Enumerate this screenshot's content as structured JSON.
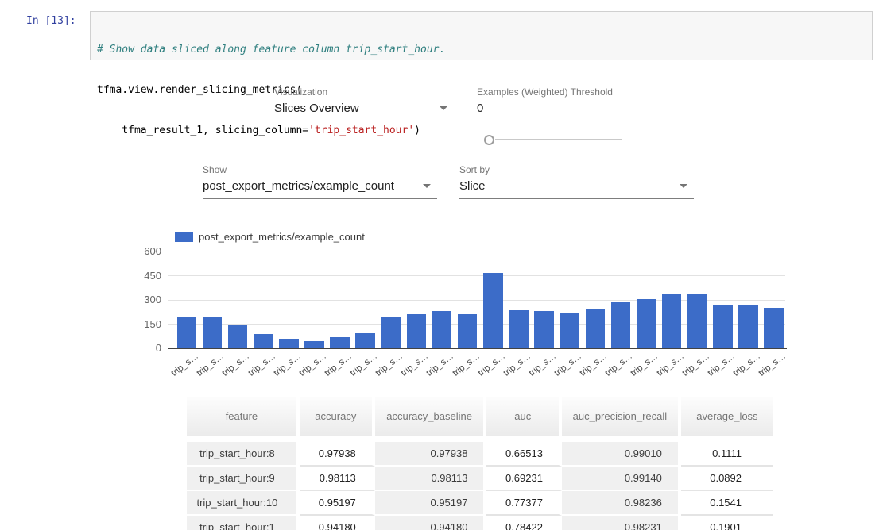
{
  "notebook": {
    "prompt": "In [13]:",
    "code": {
      "comment_line": "# Show data sliced along feature column trip_start_hour.",
      "line2": "tfma.view.render_slicing_metrics(",
      "line3_pre": "    tfma_result_1, slicing_column=",
      "line3_string": "'trip_start_hour'",
      "line3_close": ")"
    }
  },
  "controls": {
    "visualization": {
      "label": "Visualization",
      "value": "Slices Overview"
    },
    "threshold": {
      "label": "Examples (Weighted) Threshold",
      "value": "0",
      "slider_value": 0
    },
    "show": {
      "label": "Show",
      "value": "post_export_metrics/example_count"
    },
    "sort": {
      "label": "Sort by",
      "value": "Slice"
    }
  },
  "chart_data": {
    "type": "bar",
    "legend": "post_export_metrics/example_count",
    "legend_position": "top",
    "grid": true,
    "bar_color": "#3c6cc8",
    "ylim": [
      0,
      600
    ],
    "y_ticks": [
      0,
      150,
      300,
      450,
      600
    ],
    "x_tick_label": "trip_s…",
    "categories": [
      "trip_s…",
      "trip_s…",
      "trip_s…",
      "trip_s…",
      "trip_s…",
      "trip_s…",
      "trip_s…",
      "trip_s…",
      "trip_s…",
      "trip_s…",
      "trip_s…",
      "trip_s…",
      "trip_s…",
      "trip_s…",
      "trip_s…",
      "trip_s…",
      "trip_s…",
      "trip_s…",
      "trip_s…",
      "trip_s…",
      "trip_s…",
      "trip_s…",
      "trip_s…",
      "trip_s…"
    ],
    "values": [
      190,
      190,
      148,
      90,
      57,
      45,
      68,
      95,
      196,
      213,
      233,
      210,
      465,
      235,
      230,
      220,
      240,
      285,
      305,
      335,
      335,
      265,
      272,
      250
    ],
    "title": "",
    "xlabel": "",
    "ylabel": ""
  },
  "table": {
    "headers": [
      "feature",
      "accuracy",
      "accuracy_baseline",
      "auc",
      "auc_precision_recall",
      "average_loss"
    ],
    "rows": [
      [
        "trip_start_hour:8",
        "0.97938",
        "0.97938",
        "0.66513",
        "0.99010",
        "0.1111"
      ],
      [
        "trip_start_hour:9",
        "0.98113",
        "0.98113",
        "0.69231",
        "0.99140",
        "0.0892"
      ],
      [
        "trip_start_hour:10",
        "0.95197",
        "0.95197",
        "0.77377",
        "0.98236",
        "0.1541"
      ],
      [
        "trip_start_hour:1",
        "0.94180",
        "0.94180",
        "0.78422",
        "0.98231",
        "0.1901"
      ]
    ]
  }
}
